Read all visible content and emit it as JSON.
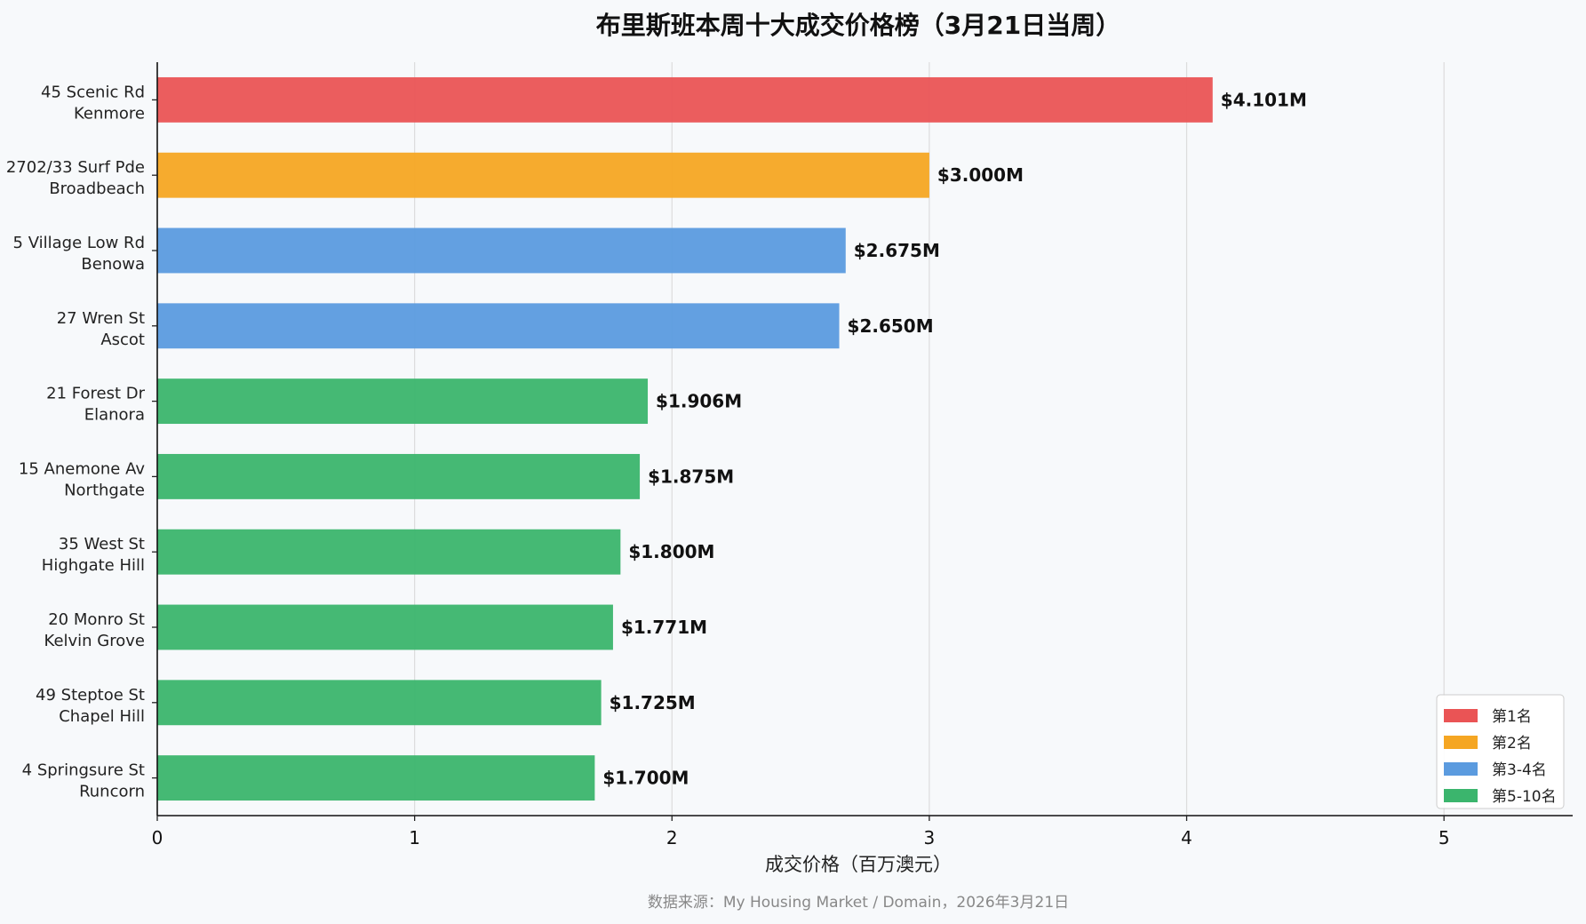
{
  "chart_data": {
    "type": "bar",
    "orientation": "horizontal",
    "title": "布里斯班本周十大成交价格榜（3月21日当周）",
    "xlabel": "成交价格（百万澳元）",
    "ylabel": "",
    "xlim": [
      0,
      5.5
    ],
    "xticks": [
      "0",
      "1",
      "2",
      "3",
      "4",
      "5"
    ],
    "grid": "vertical",
    "source": "数据来源：My Housing Market / Domain，2026年3月21日",
    "legend_position": "bottom-right",
    "legend": [
      {
        "label": "第1名",
        "color": "#ea5455"
      },
      {
        "label": "第2名",
        "color": "#f5a623"
      },
      {
        "label": "第3-4名",
        "color": "#5b9bdf"
      },
      {
        "label": "第5-10名",
        "color": "#3bb56d"
      }
    ],
    "bars": [
      {
        "line1": "45 Scenic Rd",
        "line2": "Kenmore",
        "value": 4.101,
        "label": "$4.101M",
        "group": 0
      },
      {
        "line1": "2702/33 Surf Pde",
        "line2": "Broadbeach",
        "value": 3.0,
        "label": "$3.000M",
        "group": 1
      },
      {
        "line1": "5 Village Low Rd",
        "line2": "Benowa",
        "value": 2.675,
        "label": "$2.675M",
        "group": 2
      },
      {
        "line1": "27 Wren St",
        "line2": "Ascot",
        "value": 2.65,
        "label": "$2.650M",
        "group": 2
      },
      {
        "line1": "21 Forest Dr",
        "line2": "Elanora",
        "value": 1.906,
        "label": "$1.906M",
        "group": 3
      },
      {
        "line1": "15 Anemone Av",
        "line2": "Northgate",
        "value": 1.875,
        "label": "$1.875M",
        "group": 3
      },
      {
        "line1": "35 West St",
        "line2": "Highgate Hill",
        "value": 1.8,
        "label": "$1.800M",
        "group": 3
      },
      {
        "line1": "20 Monro St",
        "line2": "Kelvin Grove",
        "value": 1.771,
        "label": "$1.771M",
        "group": 3
      },
      {
        "line1": "49 Steptoe St",
        "line2": "Chapel Hill",
        "value": 1.725,
        "label": "$1.725M",
        "group": 3
      },
      {
        "line1": "4 Springsure St",
        "line2": "Runcorn",
        "value": 1.7,
        "label": "$1.700M",
        "group": 3
      }
    ]
  }
}
